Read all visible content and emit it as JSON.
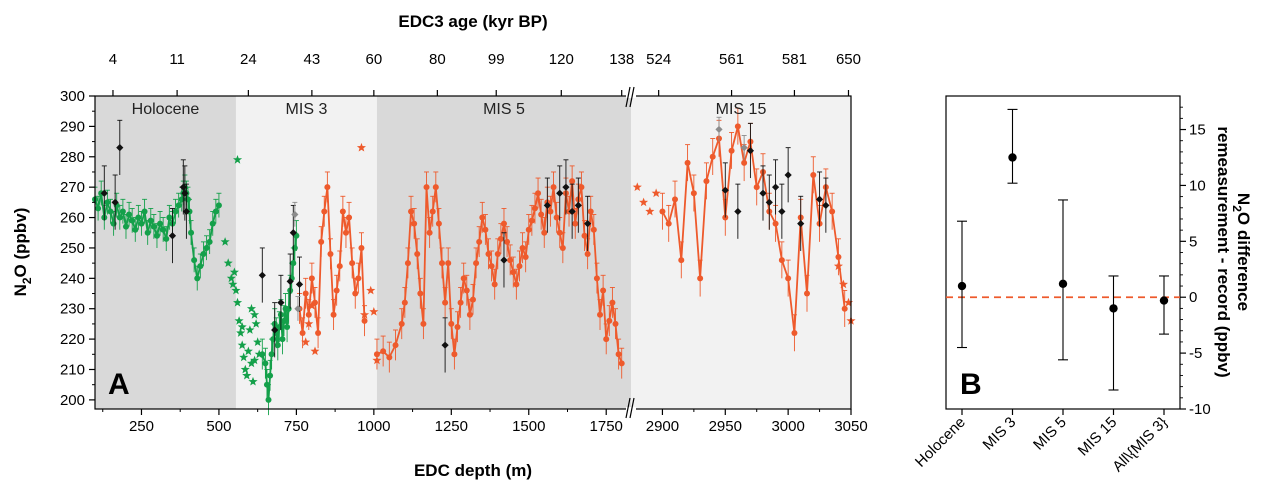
{
  "colors": {
    "green": "#14a04a",
    "orange": "#ee5a2c",
    "black": "#111111",
    "gray_marker": "#8c8c8c",
    "shade_dark": "#d9d9d9",
    "shade_light": "#f2f2f2",
    "zero_line": "#ee5a2c"
  },
  "chart_data": [
    {
      "panel": "A",
      "type": "scatter",
      "panel_label": "A",
      "title": "",
      "top_axis_label": "EDC3 age (kyr BP)",
      "xlabel": "EDC depth (m)",
      "ylabel_main": "N",
      "ylabel_sub": "2",
      "ylabel_rest": "O (ppbv)",
      "ylim": [
        197,
        300
      ],
      "y_ticks": [
        200,
        210,
        220,
        230,
        240,
        250,
        260,
        270,
        280,
        290,
        300
      ],
      "x_segments": [
        {
          "depth_range": [
            100,
            1830
          ],
          "ticks": [
            250,
            500,
            750,
            1000,
            1250,
            1500,
            1750
          ]
        },
        {
          "depth_range": [
            2875,
            3050
          ],
          "ticks": [
            2900,
            2950,
            3000,
            3050
          ]
        }
      ],
      "age_ticks": [
        {
          "depth": 158,
          "label": "4"
        },
        {
          "depth": 365,
          "label": "11"
        },
        {
          "depth": 595,
          "label": "24"
        },
        {
          "depth": 800,
          "label": "43"
        },
        {
          "depth": 1000,
          "label": "60"
        },
        {
          "depth": 1205,
          "label": "80"
        },
        {
          "depth": 1395,
          "label": "99"
        },
        {
          "depth": 1605,
          "label": "120"
        },
        {
          "depth": 1800,
          "label": "138"
        },
        {
          "depth": 2897,
          "label": "524"
        },
        {
          "depth": 2955,
          "label": "561"
        },
        {
          "depth": 3005,
          "label": "581"
        },
        {
          "depth": 3048,
          "label": "650"
        }
      ],
      "periods": [
        {
          "label": "Holocene",
          "from": 100,
          "to": 555,
          "shade": "dark"
        },
        {
          "label": "MIS 3",
          "from": 555,
          "to": 1010,
          "shade": "light"
        },
        {
          "label": "MIS 5",
          "from": 1010,
          "to": 1830,
          "shade": "dark"
        },
        {
          "label": "MIS 15",
          "from": 2875,
          "to": 3050,
          "shade": "light"
        }
      ],
      "series": [
        {
          "color_key": "green",
          "style": "line-marker",
          "x": [
            100,
            110,
            120,
            130,
            140,
            150,
            160,
            170,
            180,
            190,
            200,
            210,
            220,
            230,
            240,
            250,
            260,
            270,
            280,
            290,
            300,
            310,
            320,
            330,
            340,
            350,
            360,
            370,
            380,
            385,
            390,
            395,
            400,
            405,
            410,
            420,
            430,
            440,
            450,
            460,
            470,
            480,
            490,
            500
          ],
          "y": [
            266,
            263,
            268,
            260,
            265,
            262,
            258,
            264,
            260,
            262,
            257,
            261,
            259,
            256,
            260,
            258,
            262,
            255,
            259,
            257,
            254,
            258,
            256,
            253,
            260,
            258,
            262,
            264,
            266,
            268,
            270,
            268,
            266,
            262,
            255,
            246,
            240,
            244,
            248,
            250,
            252,
            258,
            262,
            264
          ],
          "err": 4
        },
        {
          "color_key": "green",
          "style": "line-marker",
          "x": [
            640,
            650,
            655,
            660,
            665,
            670,
            675,
            680,
            685,
            690,
            695,
            700,
            705,
            710,
            715,
            720,
            725,
            730,
            735,
            740,
            745,
            750
          ],
          "y": [
            215,
            212,
            205,
            200,
            208,
            215,
            220,
            225,
            222,
            218,
            224,
            228,
            220,
            226,
            230,
            224,
            230,
            236,
            240,
            245,
            250,
            254
          ],
          "err": 5
        },
        {
          "color_key": "green",
          "style": "star",
          "x": [
            520,
            530,
            540,
            545,
            550,
            555,
            560,
            565,
            570,
            575,
            580,
            585,
            590,
            595,
            600,
            605,
            610,
            615,
            620,
            625,
            630,
            560,
            575,
            605,
            615
          ],
          "y": [
            252,
            245,
            240,
            238,
            242,
            236,
            232,
            226,
            222,
            218,
            214,
            210,
            208,
            216,
            223,
            212,
            206,
            228,
            225,
            219,
            215,
            279,
            224,
            230,
            213
          ],
          "err": 0
        },
        {
          "color_key": "orange",
          "style": "line-marker",
          "x": [
            760,
            770,
            780,
            790,
            800,
            810,
            820,
            830,
            840,
            850,
            860,
            870,
            880,
            890,
            900,
            910,
            920,
            930,
            940,
            950,
            960,
            970
          ],
          "y": [
            230,
            222,
            235,
            228,
            240,
            232,
            222,
            252,
            262,
            270,
            248,
            228,
            236,
            244,
            262,
            255,
            260,
            245,
            235,
            240,
            250,
            226
          ],
          "err": 5
        },
        {
          "color_key": "orange",
          "style": "line-marker",
          "x": [
            1010,
            1030,
            1050,
            1070,
            1090,
            1100,
            1110,
            1120,
            1130,
            1140,
            1150,
            1160,
            1170,
            1180,
            1190,
            1200,
            1210,
            1220,
            1230,
            1240,
            1250,
            1260,
            1270,
            1280,
            1290,
            1300,
            1310,
            1320,
            1330,
            1340,
            1350,
            1360,
            1370,
            1380,
            1390,
            1400,
            1410,
            1420,
            1430,
            1440,
            1450,
            1460,
            1470,
            1480,
            1490,
            1500,
            1510,
            1520,
            1530,
            1540,
            1550,
            1560,
            1570,
            1580,
            1590,
            1600,
            1610,
            1620,
            1630,
            1640,
            1650,
            1660,
            1670,
            1680,
            1690,
            1700,
            1710,
            1720,
            1730,
            1740,
            1750,
            1760,
            1770,
            1780,
            1790,
            1800
          ],
          "y": [
            215,
            216,
            214,
            218,
            225,
            232,
            245,
            262,
            258,
            248,
            235,
            225,
            270,
            255,
            262,
            270,
            258,
            245,
            232,
            245,
            225,
            215,
            224,
            232,
            240,
            236,
            228,
            233,
            245,
            252,
            260,
            256,
            248,
            244,
            238,
            248,
            253,
            258,
            252,
            246,
            242,
            238,
            244,
            250,
            247,
            256,
            259,
            263,
            268,
            261,
            255,
            265,
            262,
            270,
            260,
            255,
            250,
            268,
            262,
            272,
            258,
            266,
            270,
            254,
            248,
            262,
            256,
            240,
            228,
            236,
            220,
            226,
            232,
            225,
            215,
            212
          ],
          "err": 5
        },
        {
          "color_key": "orange",
          "style": "line-marker",
          "x": [
            2900,
            2905,
            2910,
            2915,
            2920,
            2925,
            2930,
            2935,
            2940,
            2945,
            2950,
            2955,
            2960,
            2965,
            2970,
            2975,
            2980,
            2985,
            2990,
            2995,
            3000,
            3005,
            3010,
            3015,
            3020,
            3025,
            3030,
            3035,
            3040,
            3045
          ],
          "y": [
            262,
            258,
            266,
            246,
            278,
            268,
            240,
            272,
            280,
            286,
            260,
            282,
            290,
            278,
            285,
            270,
            275,
            262,
            258,
            246,
            240,
            222,
            260,
            235,
            274,
            258,
            270,
            262,
            247,
            230
          ],
          "err": 6
        },
        {
          "color_key": "orange",
          "style": "star",
          "x": [
            780,
            790,
            800,
            810,
            960,
            970,
            990,
            1000,
            1010,
            1880,
            1890,
            1895,
            1900,
            1905,
            1910,
            2880,
            2885,
            2890,
            2895,
            3040,
            3044,
            3048,
            3050
          ],
          "y": [
            219,
            225,
            231,
            216,
            283,
            228,
            236,
            229,
            213,
            248,
            244,
            240,
            246,
            238,
            252,
            270,
            265,
            262,
            268,
            244,
            238,
            232,
            226
          ],
          "err": 0
        },
        {
          "color_key": "black",
          "style": "diamond",
          "x": [
            130,
            165,
            180,
            350,
            385,
            390,
            395,
            640,
            680,
            700,
            730,
            740,
            760,
            1230,
            1420,
            1560,
            1600,
            1620,
            1640,
            1660,
            1690,
            2950,
            2960,
            2970,
            2980,
            2985,
            2990,
            2995,
            3000,
            3010,
            3025,
            3030
          ],
          "y": [
            268,
            265,
            283,
            254,
            270,
            268,
            262,
            241,
            223,
            232,
            239,
            255,
            238,
            218,
            246,
            264,
            268,
            270,
            262,
            264,
            258,
            269,
            262,
            282,
            268,
            265,
            270,
            262,
            274,
            258,
            266,
            264
          ],
          "err": 9
        },
        {
          "color_key": "gray_marker",
          "style": "diamond",
          "x": [
            745,
            755,
            2945,
            2965
          ],
          "y": [
            261,
            230,
            289,
            283
          ],
          "err": 4
        }
      ]
    },
    {
      "panel": "B",
      "type": "scatter",
      "panel_label": "B",
      "title": "",
      "categories": [
        "Holocene",
        "MIS 3",
        "MIS 5",
        "MIS 15",
        "All\\{MIS 3}"
      ],
      "values": [
        1.0,
        12.5,
        1.2,
        -1.0,
        -0.3
      ],
      "err_low": [
        -4.5,
        10.2,
        -5.6,
        -8.3,
        -3.3
      ],
      "err_high": [
        6.8,
        16.8,
        8.7,
        1.9,
        1.9
      ],
      "ylim": [
        -10,
        18
      ],
      "y_ticks": [
        -10,
        -5,
        0,
        5,
        10,
        15
      ],
      "zero_line": 0,
      "ylabel_line1_pre": "N",
      "ylabel_line1_sub": "2",
      "ylabel_line1_post": "O difference",
      "ylabel_line2": "remeasurement - record (ppbv)"
    }
  ]
}
